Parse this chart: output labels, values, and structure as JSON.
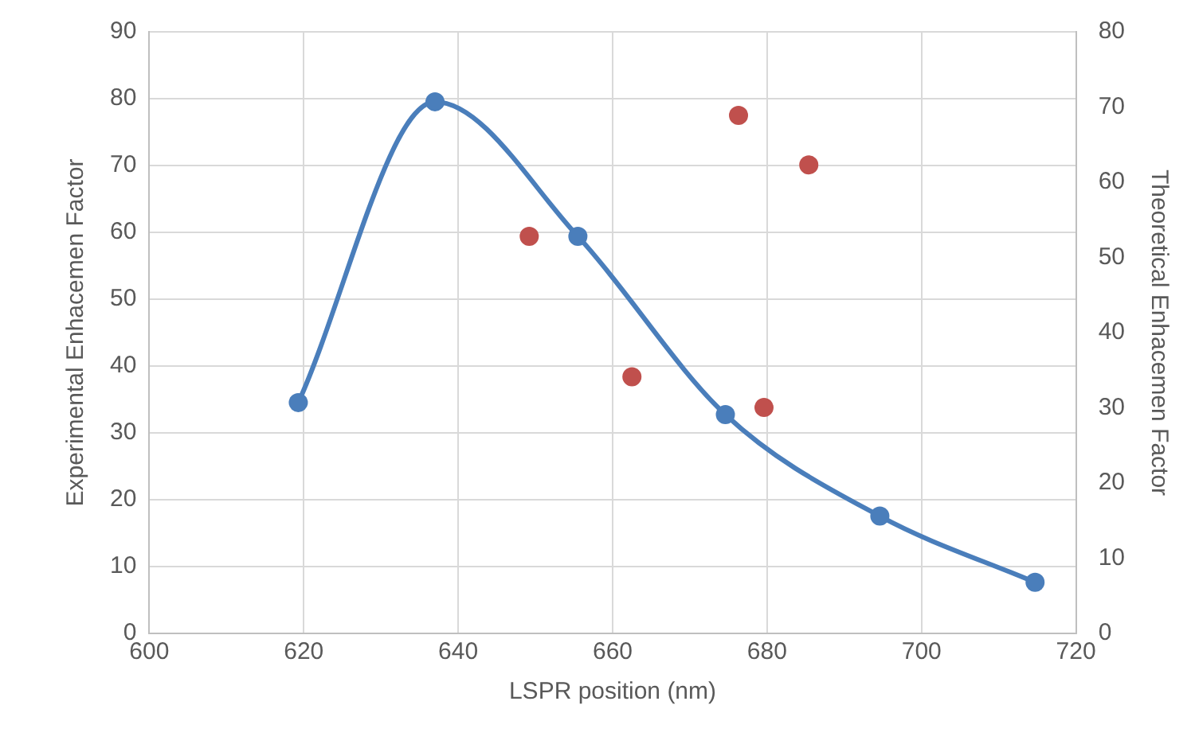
{
  "chart_data": {
    "type": "scatter",
    "xlabel": "LSPR position (nm)",
    "ylabel": "Experimental Enhacemen Factor",
    "y2label": "Theoretical Enhacemen Factor",
    "xlim": [
      600,
      720
    ],
    "xticks": [
      600,
      620,
      640,
      660,
      680,
      700,
      720
    ],
    "ylim": [
      0,
      90
    ],
    "yticks": [
      0,
      10,
      20,
      30,
      40,
      50,
      60,
      70,
      80,
      90
    ],
    "y2lim": [
      0,
      80
    ],
    "y2ticks": [
      0,
      10,
      20,
      30,
      40,
      50,
      60,
      70,
      80
    ],
    "grid": true,
    "legend": false,
    "marker": "circle",
    "series": [
      {
        "type": "line",
        "axis": "y2",
        "color": "#4a7ebb",
        "x": [
          619.3,
          637,
          655.5,
          674.6,
          694.6,
          714.7
        ],
        "values": [
          30.7,
          70.7,
          52.8,
          29.1,
          15.6,
          6.8
        ]
      },
      {
        "color": "#c0504d",
        "x": [
          649.2,
          662.5,
          676.3,
          679.6,
          685.4
        ],
        "values": [
          59.4,
          38.4,
          77.5,
          33.8,
          70.1
        ]
      }
    ]
  }
}
